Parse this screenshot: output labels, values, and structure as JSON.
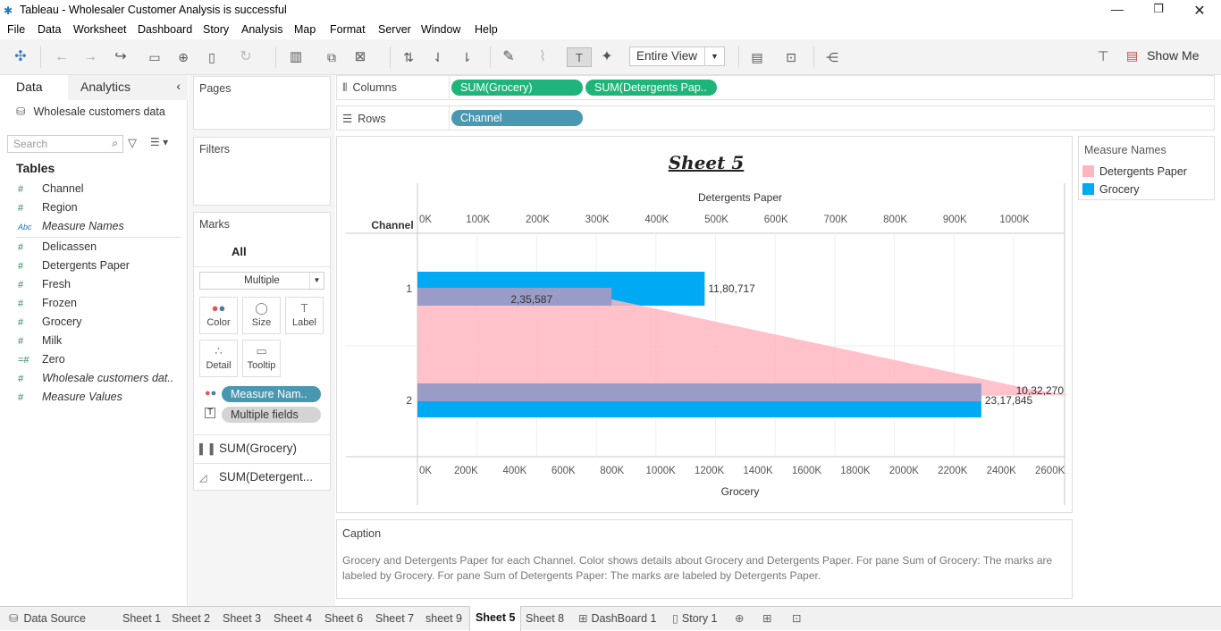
{
  "window": {
    "title": "Tableau - Wholesaler Customer Analysis is successful"
  },
  "menu": [
    "File",
    "Data",
    "Worksheet",
    "Dashboard",
    "Story",
    "Analysis",
    "Map",
    "Format",
    "Server",
    "Window",
    "Help"
  ],
  "toolbar": {
    "view_mode": "Entire View",
    "show_me": "Show Me"
  },
  "left_pane": {
    "tabs": [
      "Data",
      "Analytics"
    ],
    "datasource": "Wholesale customers data",
    "search_placeholder": "Search",
    "tables_heading": "Tables",
    "fields": [
      {
        "name": "Channel",
        "type": "measure-number",
        "italic": false
      },
      {
        "name": "Region",
        "type": "measure-number",
        "italic": false
      },
      {
        "name": "Measure Names",
        "type": "dimension-text",
        "italic": true
      },
      {
        "name": "Delicassen",
        "type": "measure-number",
        "italic": false
      },
      {
        "name": "Detergents Paper",
        "type": "measure-number",
        "italic": false
      },
      {
        "name": "Fresh",
        "type": "measure-number",
        "italic": false
      },
      {
        "name": "Frozen",
        "type": "measure-number",
        "italic": false
      },
      {
        "name": "Grocery",
        "type": "measure-number",
        "italic": false
      },
      {
        "name": "Milk",
        "type": "measure-number",
        "italic": false
      },
      {
        "name": "Zero",
        "type": "calc-number",
        "italic": false
      },
      {
        "name": "Wholesale customers dat..",
        "type": "measure-number",
        "italic": true
      },
      {
        "name": "Measure Values",
        "type": "measure-number",
        "italic": true
      }
    ]
  },
  "cards": {
    "pages": "Pages",
    "filters": "Filters",
    "marks": "Marks",
    "marks_all": "All",
    "mark_type": "Multiple",
    "mark_buttons": [
      "Color",
      "Size",
      "Label",
      "Detail",
      "Tooltip"
    ],
    "mark_pills": [
      {
        "label": "Measure Nam..",
        "icon": "color-dots-icon"
      },
      {
        "label": "Multiple fields",
        "icon": "label-icon"
      }
    ],
    "mark_rows": [
      {
        "label": "SUM(Grocery)",
        "icon": "bar-chart-icon"
      },
      {
        "label": "SUM(Detergent...",
        "icon": "area-chart-icon"
      }
    ]
  },
  "shelves": {
    "columns_label": "Columns",
    "columns": [
      "SUM(Grocery)",
      "SUM(Detergents Pap.."
    ],
    "rows_label": "Rows",
    "rows": [
      "Channel"
    ]
  },
  "sheet_title": "Sheet 5",
  "chart_data": {
    "type": "bar",
    "title": "Sheet 5",
    "row_header": "Channel",
    "categories": [
      "1",
      "2"
    ],
    "series": [
      {
        "name": "Grocery",
        "values": [
          1180717,
          2317845
        ],
        "labels": [
          "11,80,717",
          "23,17,845"
        ],
        "color": "#00a9f4",
        "mark": "bar",
        "axis": "bottom"
      },
      {
        "name": "Detergents Paper",
        "values": [
          235587,
          1032270
        ],
        "labels": [
          "2,35,587",
          "10,32,270"
        ],
        "color": "#ffb6c1",
        "mark": "area",
        "axis": "top"
      }
    ],
    "top_axis": {
      "label": "Detergents Paper",
      "ticks": [
        "0K",
        "100K",
        "200K",
        "300K",
        "400K",
        "500K",
        "600K",
        "700K",
        "800K",
        "900K",
        "1000K"
      ],
      "range": [
        0,
        1000000
      ]
    },
    "bottom_axis": {
      "label": "Grocery",
      "ticks": [
        "0K",
        "200K",
        "400K",
        "600K",
        "800K",
        "1000K",
        "1200K",
        "1400K",
        "1600K",
        "1800K",
        "2000K",
        "2200K",
        "2400K",
        "2600K"
      ],
      "range": [
        0,
        2600000
      ]
    },
    "grid": true
  },
  "legend": {
    "title": "Measure Names",
    "items": [
      {
        "name": "Detergents Paper",
        "color": "#ffb6c1"
      },
      {
        "name": "Grocery",
        "color": "#00a9f4"
      }
    ]
  },
  "caption": {
    "title": "Caption",
    "text": "Grocery and Detergents Paper for each Channel.  Color shows details about Grocery and Detergents Paper.  For pane Sum of Grocery:  The marks are labeled by Grocery.  For pane Sum of Detergents Paper:  The marks are labeled by Detergents Paper."
  },
  "sheet_tabs": [
    "Data Source",
    "Sheet 1",
    "Sheet 2",
    "Sheet 3",
    "Sheet 4",
    "Sheet 6",
    "Sheet 7",
    "sheet 9",
    "Sheet 5",
    "Sheet 8",
    "DashBoard 1",
    "Story 1"
  ],
  "active_tab": "Sheet 5"
}
